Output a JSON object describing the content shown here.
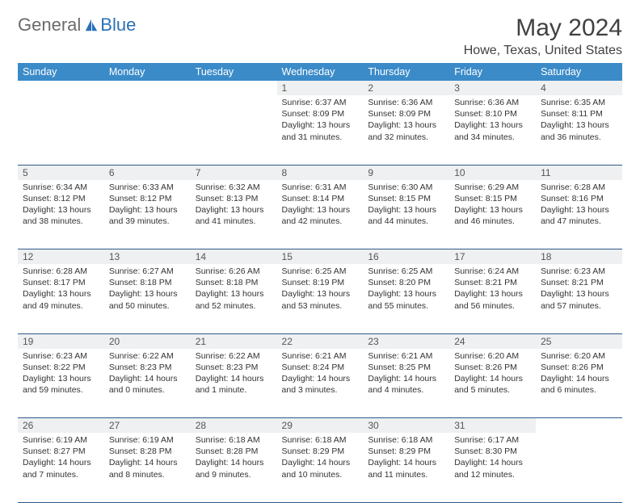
{
  "logo": {
    "part1": "General",
    "part2": "Blue"
  },
  "title": "May 2024",
  "location": "Howe, Texas, United States",
  "colors": {
    "header_bg": "#3b8bc9",
    "header_text": "#ffffff",
    "daynum_bg": "#eef0f1",
    "border": "#2e5a8a",
    "text": "#333333",
    "logo_gray": "#6b6b6b",
    "logo_blue": "#2a71b8"
  },
  "weekdays": [
    "Sunday",
    "Monday",
    "Tuesday",
    "Wednesday",
    "Thursday",
    "Friday",
    "Saturday"
  ],
  "weeks": [
    [
      {},
      {},
      {},
      {
        "day": "1",
        "sunrise": "6:37 AM",
        "sunset": "8:09 PM",
        "daylight": "13 hours and 31 minutes."
      },
      {
        "day": "2",
        "sunrise": "6:36 AM",
        "sunset": "8:09 PM",
        "daylight": "13 hours and 32 minutes."
      },
      {
        "day": "3",
        "sunrise": "6:36 AM",
        "sunset": "8:10 PM",
        "daylight": "13 hours and 34 minutes."
      },
      {
        "day": "4",
        "sunrise": "6:35 AM",
        "sunset": "8:11 PM",
        "daylight": "13 hours and 36 minutes."
      }
    ],
    [
      {
        "day": "5",
        "sunrise": "6:34 AM",
        "sunset": "8:12 PM",
        "daylight": "13 hours and 38 minutes."
      },
      {
        "day": "6",
        "sunrise": "6:33 AM",
        "sunset": "8:12 PM",
        "daylight": "13 hours and 39 minutes."
      },
      {
        "day": "7",
        "sunrise": "6:32 AM",
        "sunset": "8:13 PM",
        "daylight": "13 hours and 41 minutes."
      },
      {
        "day": "8",
        "sunrise": "6:31 AM",
        "sunset": "8:14 PM",
        "daylight": "13 hours and 42 minutes."
      },
      {
        "day": "9",
        "sunrise": "6:30 AM",
        "sunset": "8:15 PM",
        "daylight": "13 hours and 44 minutes."
      },
      {
        "day": "10",
        "sunrise": "6:29 AM",
        "sunset": "8:15 PM",
        "daylight": "13 hours and 46 minutes."
      },
      {
        "day": "11",
        "sunrise": "6:28 AM",
        "sunset": "8:16 PM",
        "daylight": "13 hours and 47 minutes."
      }
    ],
    [
      {
        "day": "12",
        "sunrise": "6:28 AM",
        "sunset": "8:17 PM",
        "daylight": "13 hours and 49 minutes."
      },
      {
        "day": "13",
        "sunrise": "6:27 AM",
        "sunset": "8:18 PM",
        "daylight": "13 hours and 50 minutes."
      },
      {
        "day": "14",
        "sunrise": "6:26 AM",
        "sunset": "8:18 PM",
        "daylight": "13 hours and 52 minutes."
      },
      {
        "day": "15",
        "sunrise": "6:25 AM",
        "sunset": "8:19 PM",
        "daylight": "13 hours and 53 minutes."
      },
      {
        "day": "16",
        "sunrise": "6:25 AM",
        "sunset": "8:20 PM",
        "daylight": "13 hours and 55 minutes."
      },
      {
        "day": "17",
        "sunrise": "6:24 AM",
        "sunset": "8:21 PM",
        "daylight": "13 hours and 56 minutes."
      },
      {
        "day": "18",
        "sunrise": "6:23 AM",
        "sunset": "8:21 PM",
        "daylight": "13 hours and 57 minutes."
      }
    ],
    [
      {
        "day": "19",
        "sunrise": "6:23 AM",
        "sunset": "8:22 PM",
        "daylight": "13 hours and 59 minutes."
      },
      {
        "day": "20",
        "sunrise": "6:22 AM",
        "sunset": "8:23 PM",
        "daylight": "14 hours and 0 minutes."
      },
      {
        "day": "21",
        "sunrise": "6:22 AM",
        "sunset": "8:23 PM",
        "daylight": "14 hours and 1 minute."
      },
      {
        "day": "22",
        "sunrise": "6:21 AM",
        "sunset": "8:24 PM",
        "daylight": "14 hours and 3 minutes."
      },
      {
        "day": "23",
        "sunrise": "6:21 AM",
        "sunset": "8:25 PM",
        "daylight": "14 hours and 4 minutes."
      },
      {
        "day": "24",
        "sunrise": "6:20 AM",
        "sunset": "8:26 PM",
        "daylight": "14 hours and 5 minutes."
      },
      {
        "day": "25",
        "sunrise": "6:20 AM",
        "sunset": "8:26 PM",
        "daylight": "14 hours and 6 minutes."
      }
    ],
    [
      {
        "day": "26",
        "sunrise": "6:19 AM",
        "sunset": "8:27 PM",
        "daylight": "14 hours and 7 minutes."
      },
      {
        "day": "27",
        "sunrise": "6:19 AM",
        "sunset": "8:28 PM",
        "daylight": "14 hours and 8 minutes."
      },
      {
        "day": "28",
        "sunrise": "6:18 AM",
        "sunset": "8:28 PM",
        "daylight": "14 hours and 9 minutes."
      },
      {
        "day": "29",
        "sunrise": "6:18 AM",
        "sunset": "8:29 PM",
        "daylight": "14 hours and 10 minutes."
      },
      {
        "day": "30",
        "sunrise": "6:18 AM",
        "sunset": "8:29 PM",
        "daylight": "14 hours and 11 minutes."
      },
      {
        "day": "31",
        "sunrise": "6:17 AM",
        "sunset": "8:30 PM",
        "daylight": "14 hours and 12 minutes."
      },
      {}
    ]
  ],
  "labels": {
    "sunrise": "Sunrise:",
    "sunset": "Sunset:",
    "daylight": "Daylight:"
  }
}
